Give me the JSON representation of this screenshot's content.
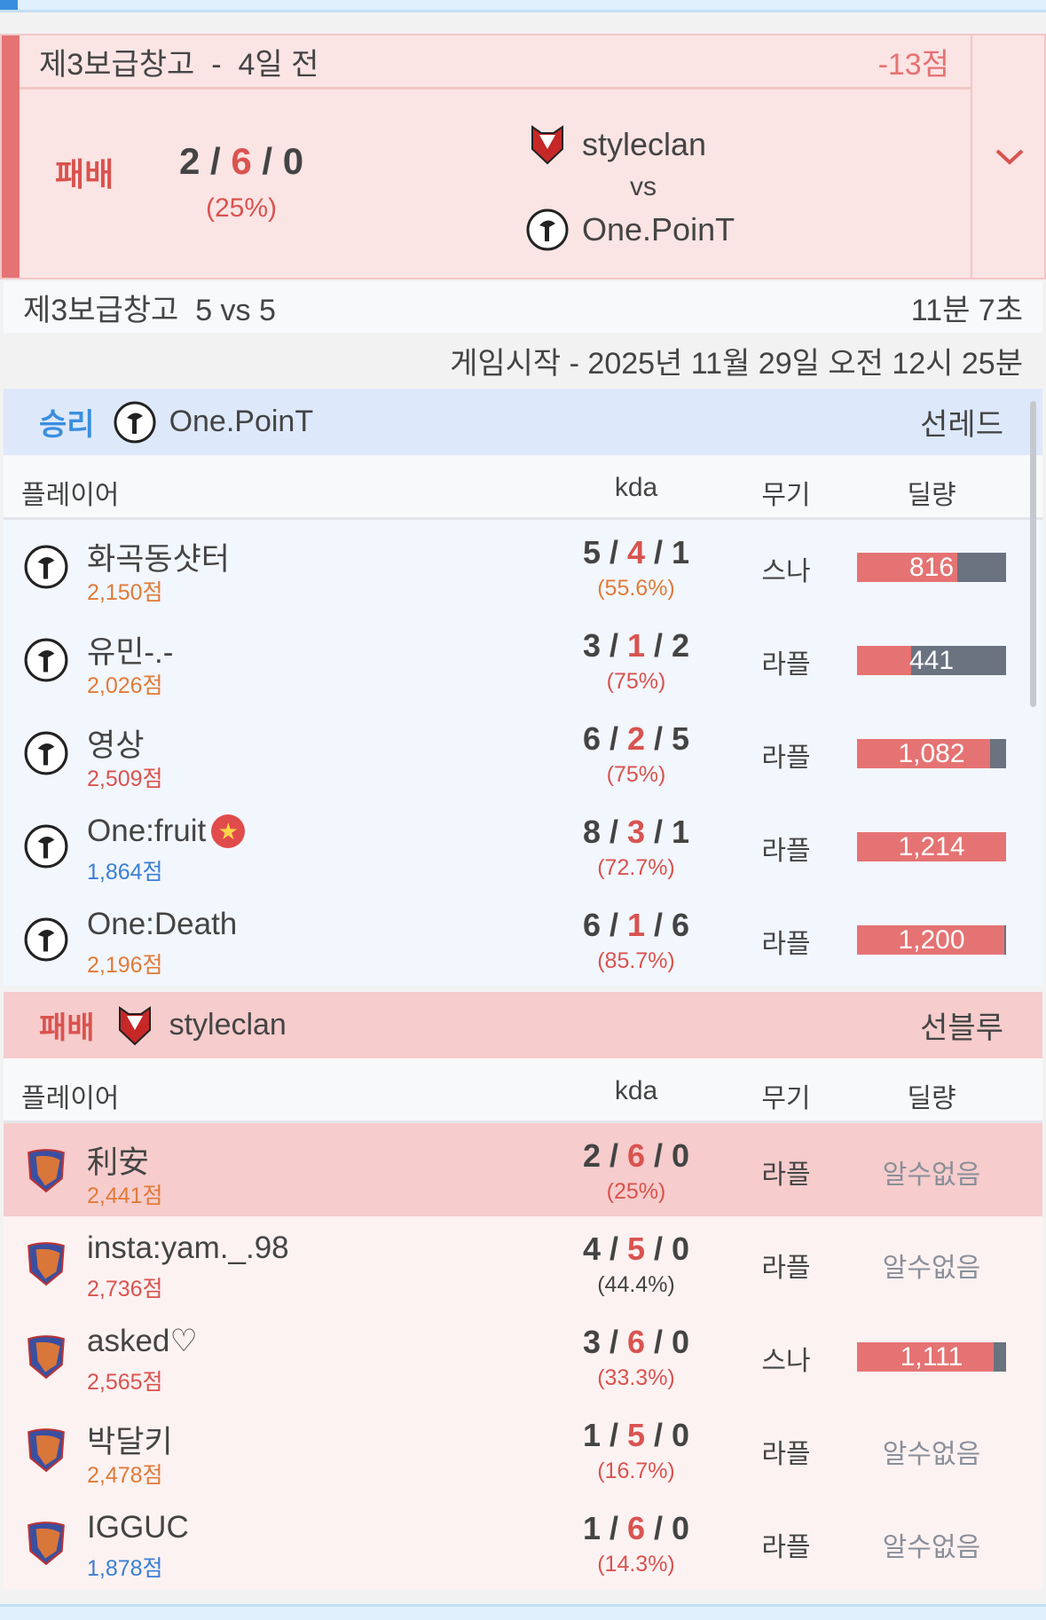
{
  "match": {
    "map": "제3보급창고",
    "sep": "-",
    "ago": "4일 전",
    "points": "-13점",
    "result": "패배",
    "kda": {
      "k": "2",
      "d": "6",
      "a": "0"
    },
    "pct": "(25%)",
    "team_a": "styleclan",
    "vs": "vs",
    "team_b": "One.PoinT",
    "expand_icon": "chevron-down-icon"
  },
  "info": {
    "title": "제3보급창고  5 vs 5",
    "duration": "11분 7초",
    "start": "게임시작 - 2025년 11월 29일 오전 12시 25분"
  },
  "columns": {
    "player": "플레이어",
    "kda": "kda",
    "weapon": "무기",
    "damage": "딜량"
  },
  "colors": {
    "win_bg": "#dde9fb",
    "lose_bg": "#f6cccc",
    "red": "#d9534f",
    "bar_fill": "#e57373",
    "bar_bg": "#6b7280"
  },
  "teams": [
    {
      "result": "승리",
      "name": "One.PoinT",
      "side": "선레드",
      "players": [
        {
          "name": "화곡동샷터",
          "score": "2,150점",
          "score_color": "orange",
          "k": "5",
          "d": "4",
          "a": "1",
          "pct": "(55.6%)",
          "pct_color": "orange",
          "weapon": "스나",
          "damage": "816"
        },
        {
          "name": "유민-.-",
          "score": "2,026점",
          "score_color": "orange",
          "k": "3",
          "d": "1",
          "a": "2",
          "pct": "(75%)",
          "pct_color": "red",
          "weapon": "라플",
          "damage": "441"
        },
        {
          "name": "영상",
          "score": "2,509점",
          "score_color": "red",
          "k": "6",
          "d": "2",
          "a": "5",
          "pct": "(75%)",
          "pct_color": "red",
          "weapon": "라플",
          "damage": "1,082"
        },
        {
          "name": "One:fruit",
          "badge": "star-icon",
          "score": "1,864점",
          "score_color": "blue",
          "k": "8",
          "d": "3",
          "a": "1",
          "pct": "(72.7%)",
          "pct_color": "red",
          "weapon": "라플",
          "damage": "1,214"
        },
        {
          "name": "One:Death",
          "score": "2,196점",
          "score_color": "orange",
          "k": "6",
          "d": "1",
          "a": "6",
          "pct": "(85.7%)",
          "pct_color": "red",
          "weapon": "라플",
          "damage": "1,200"
        }
      ]
    },
    {
      "result": "패배",
      "name": "styleclan",
      "side": "선블루",
      "players": [
        {
          "name": "利安",
          "score": "2,441점",
          "score_color": "orange",
          "k": "2",
          "d": "6",
          "a": "0",
          "pct": "(25%)",
          "pct_color": "red",
          "weapon": "라플",
          "damage_unknown": "알수없음",
          "highlight": true
        },
        {
          "name": "insta:yam._.98",
          "score": "2,736점",
          "score_color": "red",
          "k": "4",
          "d": "5",
          "a": "0",
          "pct": "(44.4%)",
          "pct_color": "dark",
          "weapon": "라플",
          "damage_unknown": "알수없음"
        },
        {
          "name": "asked♡",
          "score": "2,565점",
          "score_color": "red",
          "k": "3",
          "d": "6",
          "a": "0",
          "pct": "(33.3%)",
          "pct_color": "red",
          "weapon": "스나",
          "damage": "1,111"
        },
        {
          "name": "박달키",
          "score": "2,478점",
          "score_color": "orange",
          "k": "1",
          "d": "5",
          "a": "0",
          "pct": "(16.7%)",
          "pct_color": "red",
          "weapon": "라플",
          "damage_unknown": "알수없음"
        },
        {
          "name": "IGGUC",
          "score": "1,878점",
          "score_color": "blue",
          "k": "1",
          "d": "6",
          "a": "0",
          "pct": "(14.3%)",
          "pct_color": "red",
          "weapon": "라플",
          "damage_unknown": "알수없음"
        }
      ]
    }
  ]
}
